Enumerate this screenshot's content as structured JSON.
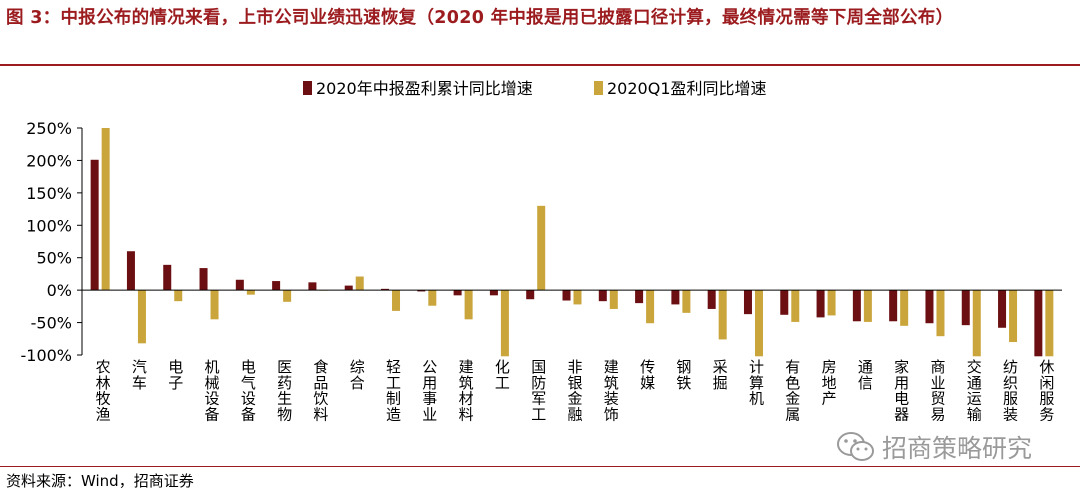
{
  "header": {
    "title": "图 3：中报公布的情况来看，上市公司业绩迅速恢复（2020 年中报是用已披露口径计算，最终情况需等下周全部公布）"
  },
  "footer": {
    "source": "资料来源：Wind，招商证券",
    "watermark": "招商策略研究"
  },
  "icons": {
    "watermark_icon": "wechat-icon"
  },
  "chart_data": {
    "type": "bar",
    "categories": [
      "农林牧渔",
      "汽车",
      "电子",
      "机械设备",
      "电气设备",
      "医药生物",
      "食品饮料",
      "综合",
      "轻工制造",
      "公用事业",
      "建筑材料",
      "化工",
      "国防军工",
      "非银金融",
      "建筑装饰",
      "传媒",
      "钢铁",
      "采掘",
      "计算机",
      "有色金属",
      "房地产",
      "通信",
      "家用电器",
      "商业贸易",
      "交通运输",
      "纺织服装",
      "休闲服务"
    ],
    "series": [
      {
        "name": "2020年中报盈利累计同比增速",
        "color": "#6b0f12",
        "values": [
          2.01,
          0.6,
          0.39,
          0.34,
          0.16,
          0.14,
          0.12,
          0.07,
          0.02,
          -0.02,
          -0.08,
          -0.08,
          -0.14,
          -0.16,
          -0.17,
          -0.2,
          -0.22,
          -0.29,
          -0.37,
          -0.38,
          -0.42,
          -0.48,
          -0.48,
          -0.51,
          -0.54,
          -0.58,
          -1.02
        ]
      },
      {
        "name": "2020Q1盈利同比增速",
        "color": "#c9a53c",
        "values": [
          2.5,
          -0.82,
          -0.17,
          -0.45,
          -0.07,
          -0.18,
          0.0,
          0.21,
          -0.32,
          -0.24,
          -0.45,
          -1.02,
          1.3,
          -0.22,
          -0.29,
          -0.51,
          -0.35,
          -0.76,
          -1.02,
          -0.49,
          -0.39,
          -0.49,
          -0.55,
          -0.71,
          -1.02,
          -0.8,
          -1.02
        ]
      }
    ],
    "y_ticks": [
      "250%",
      "200%",
      "150%",
      "100%",
      "50%",
      "0%",
      "-50%",
      "-100%"
    ],
    "y_tick_values": [
      2.5,
      2.0,
      1.5,
      1.0,
      0.5,
      0,
      -0.5,
      -1.0
    ],
    "ylim": [
      -1.0,
      2.5
    ],
    "legend_position": "top",
    "grid": false
  }
}
